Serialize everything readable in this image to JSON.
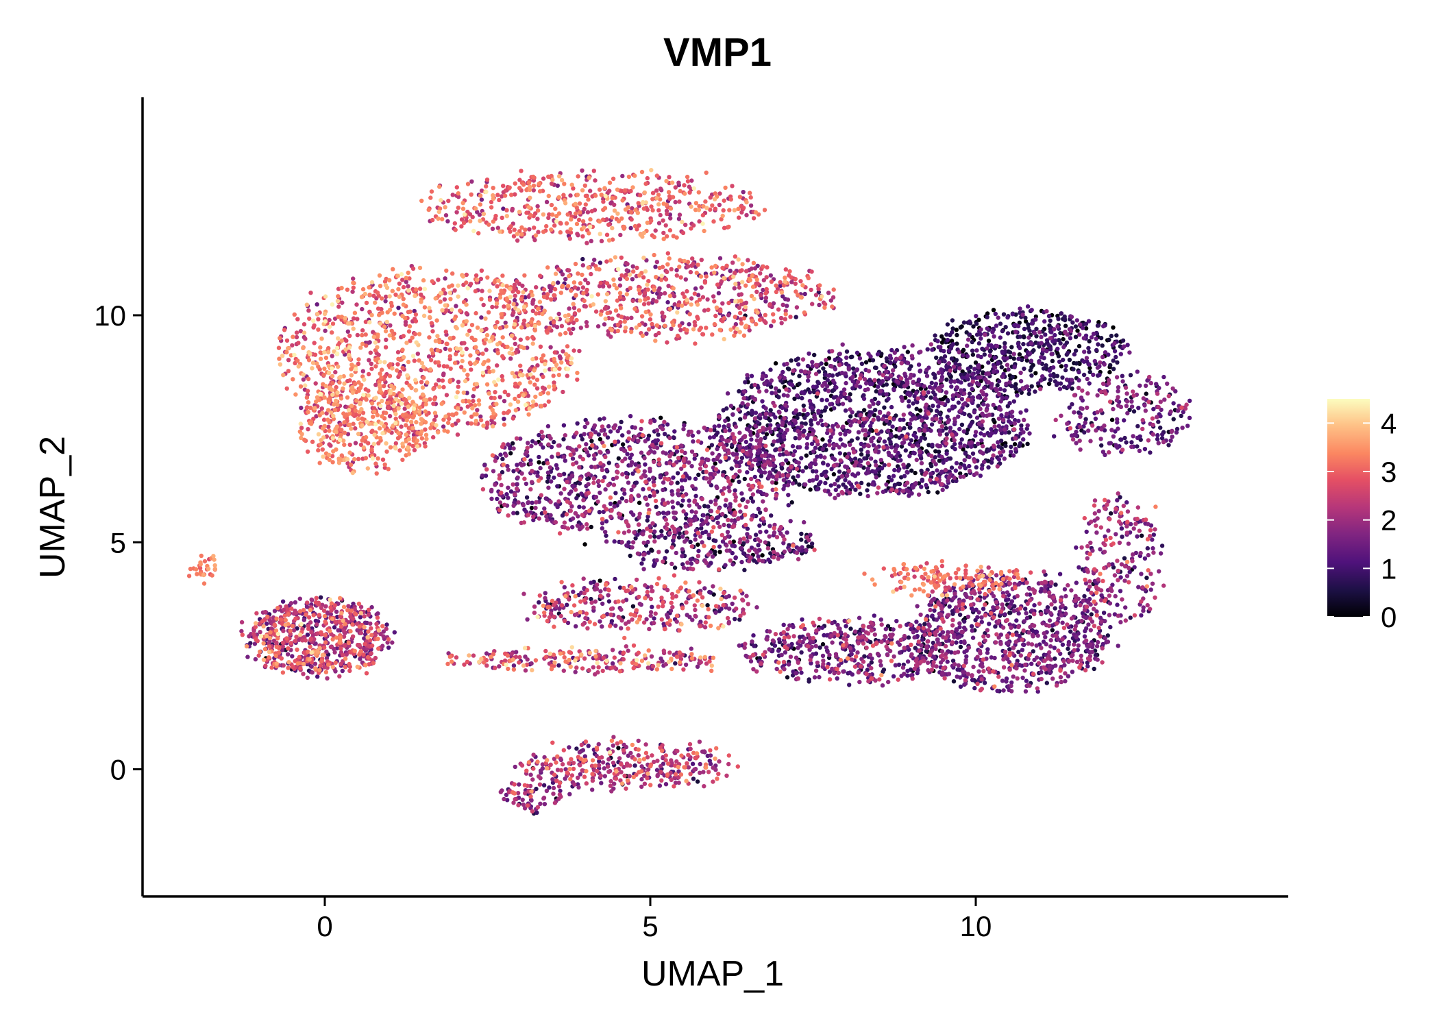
{
  "chart_data": {
    "type": "scatter",
    "title": "VMP1",
    "xlabel": "UMAP_1",
    "ylabel": "UMAP_2",
    "xlim": [
      -2.8,
      14.8
    ],
    "ylim": [
      -2.8,
      14.8
    ],
    "xticks": [
      0,
      5,
      10
    ],
    "yticks": [
      0,
      5,
      10
    ],
    "grid": false,
    "legend": {
      "position": "right",
      "type": "colorbar",
      "range": [
        0,
        4.5
      ],
      "ticks": [
        0,
        1,
        2,
        3,
        4
      ]
    },
    "colors": {
      "palette": [
        "#000004",
        "#1c1044",
        "#4f127b",
        "#812581",
        "#b5367a",
        "#e55064",
        "#fb8761",
        "#fec287",
        "#fcfdbf"
      ]
    },
    "clusters": [
      {
        "name": "upper-arc",
        "cx": 4.1,
        "cy": 12.4,
        "rx": 2.6,
        "ry": 0.75,
        "n": 520,
        "expr_mean": 2.9,
        "expr_sd": 0.55
      },
      {
        "name": "left-upper-orange",
        "cx": 1.6,
        "cy": 9.2,
        "rx": 2.3,
        "ry": 1.8,
        "n": 1100,
        "expr_mean": 3.0,
        "expr_sd": 0.6
      },
      {
        "name": "left-lobe",
        "cx": 0.6,
        "cy": 7.6,
        "rx": 1.0,
        "ry": 1.0,
        "n": 380,
        "expr_mean": 3.1,
        "expr_sd": 0.5
      },
      {
        "name": "upper-middle",
        "cx": 5.2,
        "cy": 10.4,
        "rx": 2.6,
        "ry": 0.9,
        "n": 650,
        "expr_mean": 2.6,
        "expr_sd": 0.7
      },
      {
        "name": "center-mid",
        "cx": 4.8,
        "cy": 6.4,
        "rx": 2.4,
        "ry": 1.3,
        "n": 1000,
        "expr_mean": 1.5,
        "expr_sd": 0.7
      },
      {
        "name": "center-right-dense",
        "cx": 8.4,
        "cy": 7.6,
        "rx": 2.4,
        "ry": 1.6,
        "n": 1700,
        "expr_mean": 1.1,
        "expr_sd": 0.55
      },
      {
        "name": "right-top-dark",
        "cx": 10.8,
        "cy": 9.2,
        "rx": 1.5,
        "ry": 0.9,
        "n": 550,
        "expr_mean": 0.8,
        "expr_sd": 0.5
      },
      {
        "name": "right-tip",
        "cx": 12.3,
        "cy": 7.8,
        "rx": 1.0,
        "ry": 0.9,
        "n": 220,
        "expr_mean": 1.4,
        "expr_sd": 0.6
      },
      {
        "name": "right-lower",
        "cx": 10.5,
        "cy": 3.0,
        "rx": 1.5,
        "ry": 1.3,
        "n": 850,
        "expr_mean": 1.5,
        "expr_sd": 0.6
      },
      {
        "name": "right-ring-edge",
        "cx": 12.2,
        "cy": 4.6,
        "rx": 0.6,
        "ry": 1.5,
        "n": 220,
        "expr_mean": 1.8,
        "expr_sd": 0.6
      },
      {
        "name": "lower-middle-band",
        "cx": 8.0,
        "cy": 2.6,
        "rx": 1.6,
        "ry": 0.7,
        "n": 450,
        "expr_mean": 1.6,
        "expr_sd": 0.7
      },
      {
        "name": "orange-band-right",
        "cx": 9.6,
        "cy": 4.2,
        "rx": 1.2,
        "ry": 0.3,
        "n": 140,
        "expr_mean": 3.1,
        "expr_sd": 0.4
      },
      {
        "name": "lower-left-island",
        "cx": -0.1,
        "cy": 2.9,
        "rx": 1.1,
        "ry": 0.85,
        "n": 650,
        "expr_mean": 2.3,
        "expr_sd": 0.8
      },
      {
        "name": "left-tail",
        "cx": -1.8,
        "cy": 4.4,
        "rx": 0.15,
        "ry": 0.25,
        "n": 30,
        "expr_mean": 3.2,
        "expr_sd": 0.3
      },
      {
        "name": "middle-strand",
        "cx": 4.0,
        "cy": 2.4,
        "rx": 2.2,
        "ry": 0.2,
        "n": 220,
        "expr_mean": 2.6,
        "expr_sd": 0.8
      },
      {
        "name": "middle-arcs",
        "cx": 4.8,
        "cy": 3.6,
        "rx": 1.8,
        "ry": 0.55,
        "n": 320,
        "expr_mean": 2.1,
        "expr_sd": 0.8
      },
      {
        "name": "bottom-island",
        "cx": 4.6,
        "cy": 0.1,
        "rx": 1.7,
        "ry": 0.5,
        "n": 330,
        "expr_mean": 2.2,
        "expr_sd": 0.7
      },
      {
        "name": "bottom-tip",
        "cx": 3.2,
        "cy": -0.6,
        "rx": 0.4,
        "ry": 0.3,
        "n": 70,
        "expr_mean": 1.8,
        "expr_sd": 0.6
      },
      {
        "name": "mid-center-low",
        "cx": 6.0,
        "cy": 5.0,
        "rx": 1.5,
        "ry": 0.6,
        "n": 300,
        "expr_mean": 1.3,
        "expr_sd": 0.7
      }
    ]
  }
}
